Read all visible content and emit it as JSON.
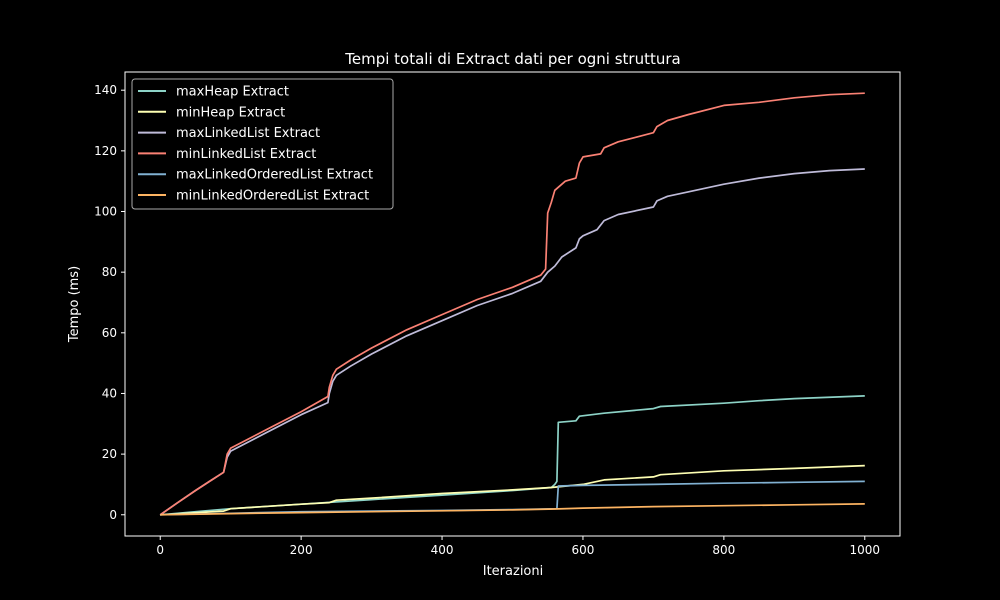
{
  "chart_data": {
    "type": "line",
    "title": "Tempi totali di Extract dati per ogni struttura",
    "xlabel": "Iterazioni",
    "ylabel": "Tempo (ms)",
    "xlim": [
      -50,
      1050
    ],
    "ylim": [
      -7,
      146
    ],
    "xticks": [
      0,
      200,
      400,
      600,
      800,
      1000
    ],
    "yticks": [
      0,
      20,
      40,
      60,
      80,
      100,
      120,
      140
    ],
    "grid": false,
    "legend_position": "top-left",
    "background": "#000000",
    "series": [
      {
        "name": "maxHeap Extract",
        "color": "#8dd3c7",
        "points": [
          [
            0,
            0
          ],
          [
            50,
            1
          ],
          [
            100,
            2
          ],
          [
            200,
            3.5
          ],
          [
            300,
            5
          ],
          [
            400,
            6.5
          ],
          [
            500,
            8
          ],
          [
            555,
            9
          ],
          [
            560,
            10
          ],
          [
            563,
            11
          ],
          [
            565,
            30.5
          ],
          [
            590,
            31
          ],
          [
            595,
            32.5
          ],
          [
            630,
            33.5
          ],
          [
            700,
            35
          ],
          [
            710,
            35.7
          ],
          [
            800,
            36.8
          ],
          [
            850,
            37.6
          ],
          [
            900,
            38.3
          ],
          [
            1000,
            39.2
          ]
        ]
      },
      {
        "name": "minHeap Extract",
        "color": "#feffb3",
        "points": [
          [
            0,
            0
          ],
          [
            90,
            1.2
          ],
          [
            100,
            2
          ],
          [
            200,
            3.5
          ],
          [
            240,
            4
          ],
          [
            250,
            4.8
          ],
          [
            300,
            5.5
          ],
          [
            400,
            7
          ],
          [
            500,
            8.2
          ],
          [
            555,
            9
          ],
          [
            600,
            10
          ],
          [
            630,
            11.5
          ],
          [
            700,
            12.5
          ],
          [
            710,
            13.2
          ],
          [
            800,
            14.5
          ],
          [
            900,
            15.3
          ],
          [
            1000,
            16.2
          ]
        ]
      },
      {
        "name": "maxLinkedList Extract",
        "color": "#bfbbd9",
        "points": [
          [
            0,
            0
          ],
          [
            25,
            4
          ],
          [
            50,
            8
          ],
          [
            70,
            11
          ],
          [
            90,
            14
          ],
          [
            95,
            19
          ],
          [
            100,
            21
          ],
          [
            150,
            27
          ],
          [
            200,
            33
          ],
          [
            238,
            37
          ],
          [
            240,
            40
          ],
          [
            245,
            44
          ],
          [
            250,
            46
          ],
          [
            270,
            49
          ],
          [
            300,
            53
          ],
          [
            350,
            59
          ],
          [
            400,
            64
          ],
          [
            450,
            69
          ],
          [
            500,
            73
          ],
          [
            540,
            77
          ],
          [
            550,
            80
          ],
          [
            560,
            82
          ],
          [
            570,
            85
          ],
          [
            590,
            88
          ],
          [
            595,
            91
          ],
          [
            600,
            92
          ],
          [
            620,
            94
          ],
          [
            630,
            97
          ],
          [
            650,
            99
          ],
          [
            700,
            101.5
          ],
          [
            705,
            103.5
          ],
          [
            720,
            105
          ],
          [
            750,
            106.5
          ],
          [
            800,
            109
          ],
          [
            850,
            111
          ],
          [
            900,
            112.5
          ],
          [
            950,
            113.5
          ],
          [
            1000,
            114
          ]
        ]
      },
      {
        "name": "minLinkedList Extract",
        "color": "#fa8174",
        "points": [
          [
            0,
            0
          ],
          [
            25,
            4
          ],
          [
            50,
            8
          ],
          [
            70,
            11
          ],
          [
            90,
            14
          ],
          [
            95,
            20
          ],
          [
            100,
            22
          ],
          [
            150,
            28
          ],
          [
            200,
            34
          ],
          [
            238,
            39
          ],
          [
            240,
            42
          ],
          [
            245,
            46
          ],
          [
            250,
            48
          ],
          [
            270,
            51
          ],
          [
            300,
            55
          ],
          [
            350,
            61
          ],
          [
            400,
            66
          ],
          [
            450,
            71
          ],
          [
            500,
            75
          ],
          [
            540,
            79
          ],
          [
            547,
            81
          ],
          [
            550,
            99.5
          ],
          [
            555,
            103
          ],
          [
            560,
            107
          ],
          [
            575,
            110
          ],
          [
            590,
            111
          ],
          [
            595,
            116
          ],
          [
            600,
            118
          ],
          [
            625,
            119
          ],
          [
            630,
            121
          ],
          [
            650,
            123
          ],
          [
            700,
            126
          ],
          [
            705,
            128
          ],
          [
            720,
            130
          ],
          [
            750,
            132
          ],
          [
            800,
            135
          ],
          [
            850,
            136
          ],
          [
            900,
            137.5
          ],
          [
            950,
            138.5
          ],
          [
            1000,
            139
          ]
        ]
      },
      {
        "name": "maxLinkedOrderedList Extract",
        "color": "#81b1d2",
        "points": [
          [
            0,
            0
          ],
          [
            100,
            0.5
          ],
          [
            200,
            1
          ],
          [
            300,
            1.2
          ],
          [
            400,
            1.4
          ],
          [
            500,
            1.7
          ],
          [
            563,
            2
          ],
          [
            565,
            9.5
          ],
          [
            600,
            9.7
          ],
          [
            700,
            10
          ],
          [
            800,
            10.4
          ],
          [
            900,
            10.7
          ],
          [
            1000,
            11
          ]
        ]
      },
      {
        "name": "minLinkedOrderedList Extract",
        "color": "#fdb462",
        "points": [
          [
            0,
            0
          ],
          [
            100,
            0.4
          ],
          [
            200,
            0.7
          ],
          [
            300,
            1
          ],
          [
            400,
            1.3
          ],
          [
            500,
            1.6
          ],
          [
            560,
            1.9
          ],
          [
            600,
            2.2
          ],
          [
            700,
            2.7
          ],
          [
            800,
            3
          ],
          [
            900,
            3.3
          ],
          [
            1000,
            3.6
          ]
        ]
      }
    ]
  }
}
